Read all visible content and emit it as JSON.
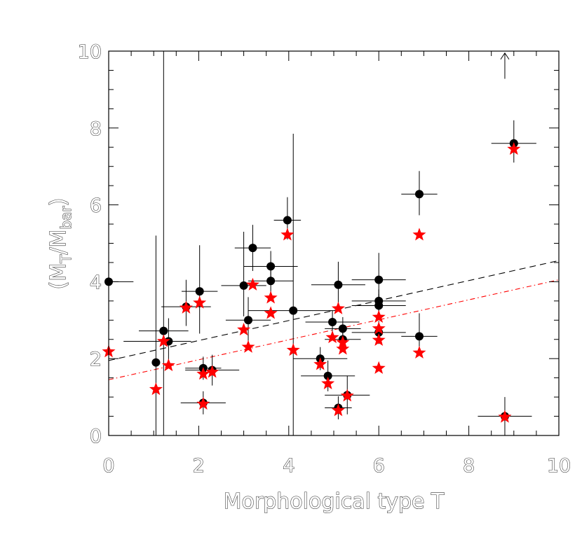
{
  "chart_data": {
    "type": "scatter",
    "xlabel": "Morphological type T",
    "ylabel_parts": {
      "open": "(M",
      "sub1": "T",
      "mid": "/M",
      "sub2": "bar",
      "close": ")"
    },
    "xlim": [
      0,
      10
    ],
    "ylim": [
      0,
      10
    ],
    "x_ticks": [
      "0",
      "2",
      "4",
      "6",
      "8",
      "10"
    ],
    "y_ticks": [
      "0",
      "2",
      "4",
      "6",
      "8",
      "10"
    ],
    "colors": {
      "black_series": "#000000",
      "red_series": "#ff0000",
      "black_fit": "#000000",
      "red_fit": "#ff0000"
    },
    "black_points": [
      {
        "x": 0.0,
        "y": 4.0,
        "xerr": [
          0.0,
          0.55
        ],
        "yerr": [
          0,
          0
        ]
      },
      {
        "x": 1.05,
        "y": 1.9,
        "xerr": [
          0,
          0
        ],
        "yerr": [
          1.9,
          3.3
        ]
      },
      {
        "x": 1.22,
        "y": 2.72,
        "xerr": [
          0.55,
          0.55
        ],
        "yerr": [
          2.72,
          7.3
        ]
      },
      {
        "x": 1.33,
        "y": 2.45,
        "xerr": [
          1.0,
          0.5
        ],
        "yerr": [
          0.6,
          0.6
        ]
      },
      {
        "x": 1.72,
        "y": 3.35,
        "xerr": [
          0.55,
          0.55
        ],
        "yerr": [
          0.5,
          0.7
        ]
      },
      {
        "x": 2.02,
        "y": 3.75,
        "xerr": [
          0.4,
          0.4
        ],
        "yerr": [
          1.1,
          1.2
        ]
      },
      {
        "x": 2.1,
        "y": 1.75,
        "xerr": [
          0.4,
          0.4
        ],
        "yerr": [
          0.3,
          0.3
        ]
      },
      {
        "x": 2.1,
        "y": 0.85,
        "xerr": [
          0.5,
          0.5
        ],
        "yerr": [
          0.3,
          0.3
        ]
      },
      {
        "x": 2.3,
        "y": 1.7,
        "xerr": [
          0.6,
          0.6
        ],
        "yerr": [
          0.4,
          0.4
        ]
      },
      {
        "x": 3.0,
        "y": 3.9,
        "xerr": [
          0.5,
          0.5
        ],
        "yerr": [
          0.8,
          1.4
        ]
      },
      {
        "x": 3.1,
        "y": 3.0,
        "xerr": [
          0.5,
          0.5
        ],
        "yerr": [
          0.6,
          0.6
        ]
      },
      {
        "x": 3.2,
        "y": 4.88,
        "xerr": [
          0.4,
          0.4
        ],
        "yerr": [
          0.6,
          0.6
        ]
      },
      {
        "x": 3.6,
        "y": 4.4,
        "xerr": [
          0.6,
          0.6
        ],
        "yerr": [
          0.4,
          0.4
        ]
      },
      {
        "x": 3.6,
        "y": 4.02,
        "xerr": [
          0.5,
          0.5
        ],
        "yerr": [
          0.5,
          0.5
        ]
      },
      {
        "x": 3.97,
        "y": 5.6,
        "xerr": [
          0.3,
          0.3
        ],
        "yerr": [
          0.5,
          0.6
        ]
      },
      {
        "x": 4.1,
        "y": 3.25,
        "xerr": [
          1.0,
          1.0
        ],
        "yerr": [
          3.25,
          4.6
        ]
      },
      {
        "x": 4.7,
        "y": 2.0,
        "xerr": [
          0.6,
          0.6
        ],
        "yerr": [
          0.3,
          0.3
        ]
      },
      {
        "x": 4.87,
        "y": 1.55,
        "xerr": [
          0.6,
          0.6
        ],
        "yerr": [
          0.4,
          0.4
        ]
      },
      {
        "x": 4.97,
        "y": 2.95,
        "xerr": [
          0.6,
          0.6
        ],
        "yerr": [
          0.3,
          0.3
        ]
      },
      {
        "x": 5.1,
        "y": 3.92,
        "xerr": [
          0.6,
          0.6
        ],
        "yerr": [
          0.55,
          0.6
        ]
      },
      {
        "x": 5.2,
        "y": 2.78,
        "xerr": [
          0.4,
          0.4
        ],
        "yerr": [
          0.3,
          0.3
        ]
      },
      {
        "x": 5.2,
        "y": 2.5,
        "xerr": [
          0.4,
          0.4
        ],
        "yerr": [
          0.3,
          0.3
        ]
      },
      {
        "x": 5.1,
        "y": 0.72,
        "xerr": [
          0.3,
          0.3
        ],
        "yerr": [
          0.3,
          0.3
        ]
      },
      {
        "x": 5.3,
        "y": 1.05,
        "xerr": [
          0.5,
          0.5
        ],
        "yerr": [
          0.5,
          0.5
        ]
      },
      {
        "x": 6.0,
        "y": 4.05,
        "xerr": [
          0.6,
          0.6
        ],
        "yerr": [
          0.55,
          0.7
        ]
      },
      {
        "x": 6.0,
        "y": 3.5,
        "xerr": [
          0.6,
          0.6
        ],
        "yerr": [
          0.3,
          0.3
        ]
      },
      {
        "x": 6.0,
        "y": 3.38,
        "xerr": [
          0.6,
          0.6
        ],
        "yerr": [
          0.3,
          0.3
        ]
      },
      {
        "x": 6.0,
        "y": 2.68,
        "xerr": [
          0.6,
          0.6
        ],
        "yerr": [
          0.3,
          0.3
        ]
      },
      {
        "x": 6.9,
        "y": 2.58,
        "xerr": [
          0.4,
          0.4
        ],
        "yerr": [
          0.3,
          0.6
        ]
      },
      {
        "x": 6.9,
        "y": 6.28,
        "xerr": [
          0.4,
          0.4
        ],
        "yerr": [
          0.55,
          0.6
        ]
      },
      {
        "x": 9.0,
        "y": 7.6,
        "xerr": [
          0.5,
          0.5
        ],
        "yerr": [
          0.5,
          0.6
        ]
      },
      {
        "x": 8.8,
        "y": 0.5,
        "xerr": [
          0.6,
          0.6
        ],
        "yerr": [
          0.5,
          0.5
        ]
      }
    ],
    "red_points": [
      {
        "x": 0.0,
        "y": 2.18
      },
      {
        "x": 1.05,
        "y": 1.2
      },
      {
        "x": 1.22,
        "y": 2.45
      },
      {
        "x": 1.33,
        "y": 1.82
      },
      {
        "x": 1.72,
        "y": 3.32
      },
      {
        "x": 2.02,
        "y": 3.45
      },
      {
        "x": 2.1,
        "y": 1.6
      },
      {
        "x": 2.1,
        "y": 0.82
      },
      {
        "x": 2.3,
        "y": 1.65
      },
      {
        "x": 3.0,
        "y": 2.75
      },
      {
        "x": 3.1,
        "y": 2.3
      },
      {
        "x": 3.2,
        "y": 3.92
      },
      {
        "x": 3.6,
        "y": 3.58
      },
      {
        "x": 3.6,
        "y": 3.18
      },
      {
        "x": 3.97,
        "y": 5.22
      },
      {
        "x": 4.1,
        "y": 2.22
      },
      {
        "x": 4.7,
        "y": 1.85
      },
      {
        "x": 4.87,
        "y": 1.35
      },
      {
        "x": 4.97,
        "y": 2.55
      },
      {
        "x": 5.1,
        "y": 3.3
      },
      {
        "x": 5.2,
        "y": 2.42
      },
      {
        "x": 5.2,
        "y": 2.25
      },
      {
        "x": 5.1,
        "y": 0.65
      },
      {
        "x": 5.3,
        "y": 1.03
      },
      {
        "x": 6.0,
        "y": 3.08
      },
      {
        "x": 6.0,
        "y": 2.78
      },
      {
        "x": 6.0,
        "y": 2.48
      },
      {
        "x": 6.0,
        "y": 1.75
      },
      {
        "x": 6.9,
        "y": 2.15
      },
      {
        "x": 6.9,
        "y": 5.22
      },
      {
        "x": 9.0,
        "y": 7.45
      },
      {
        "x": 8.8,
        "y": 0.48
      }
    ],
    "fits": [
      {
        "style": "dashed",
        "color": "#000000",
        "y0": 1.95,
        "y10": 4.55
      },
      {
        "style": "dash-dot",
        "color": "#ff0000",
        "y0": 1.45,
        "y10": 4.05
      }
    ],
    "arrow": {
      "x": 8.8,
      "y_from": 9.28,
      "y_to": 9.95,
      "symbol": "up-arrow"
    }
  }
}
